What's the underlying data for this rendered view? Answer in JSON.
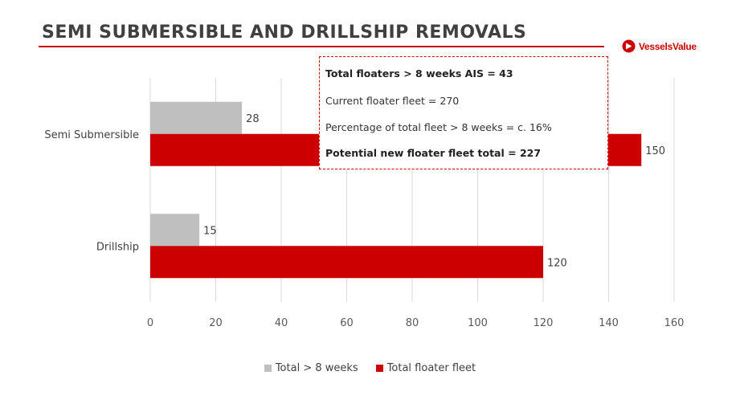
{
  "header": {
    "title": "SEMI SUBMERSIBLE AND DRILLSHIP REMOVALS"
  },
  "brand": {
    "name": "VesselsValue",
    "logo_icon": "vesselsvalue-logo-icon",
    "color": "#cc0000"
  },
  "info_box": {
    "lines": [
      {
        "text": "Total floaters > 8 weeks AIS = 43",
        "bold": true
      },
      {
        "text": "Current floater fleet = 270",
        "bold": false
      },
      {
        "text": "Percentage of total fleet > 8 weeks  = c. 16%",
        "bold": false
      },
      {
        "text": "Potential new floater fleet total = 227",
        "bold": true
      }
    ]
  },
  "chart_data": {
    "type": "bar",
    "orientation": "horizontal",
    "categories": [
      "Semi Submersible",
      "Drillship"
    ],
    "series": [
      {
        "name": "Total > 8 weeks",
        "values": [
          28,
          15
        ],
        "color": "#bfbfbf"
      },
      {
        "name": "Total floater fleet",
        "values": [
          150,
          120
        ],
        "color": "#cc0000"
      }
    ],
    "xlim": [
      0,
      160
    ],
    "xticks": [
      0,
      20,
      40,
      60,
      80,
      100,
      120,
      140,
      160
    ],
    "grid": true,
    "legend": "bottom"
  }
}
